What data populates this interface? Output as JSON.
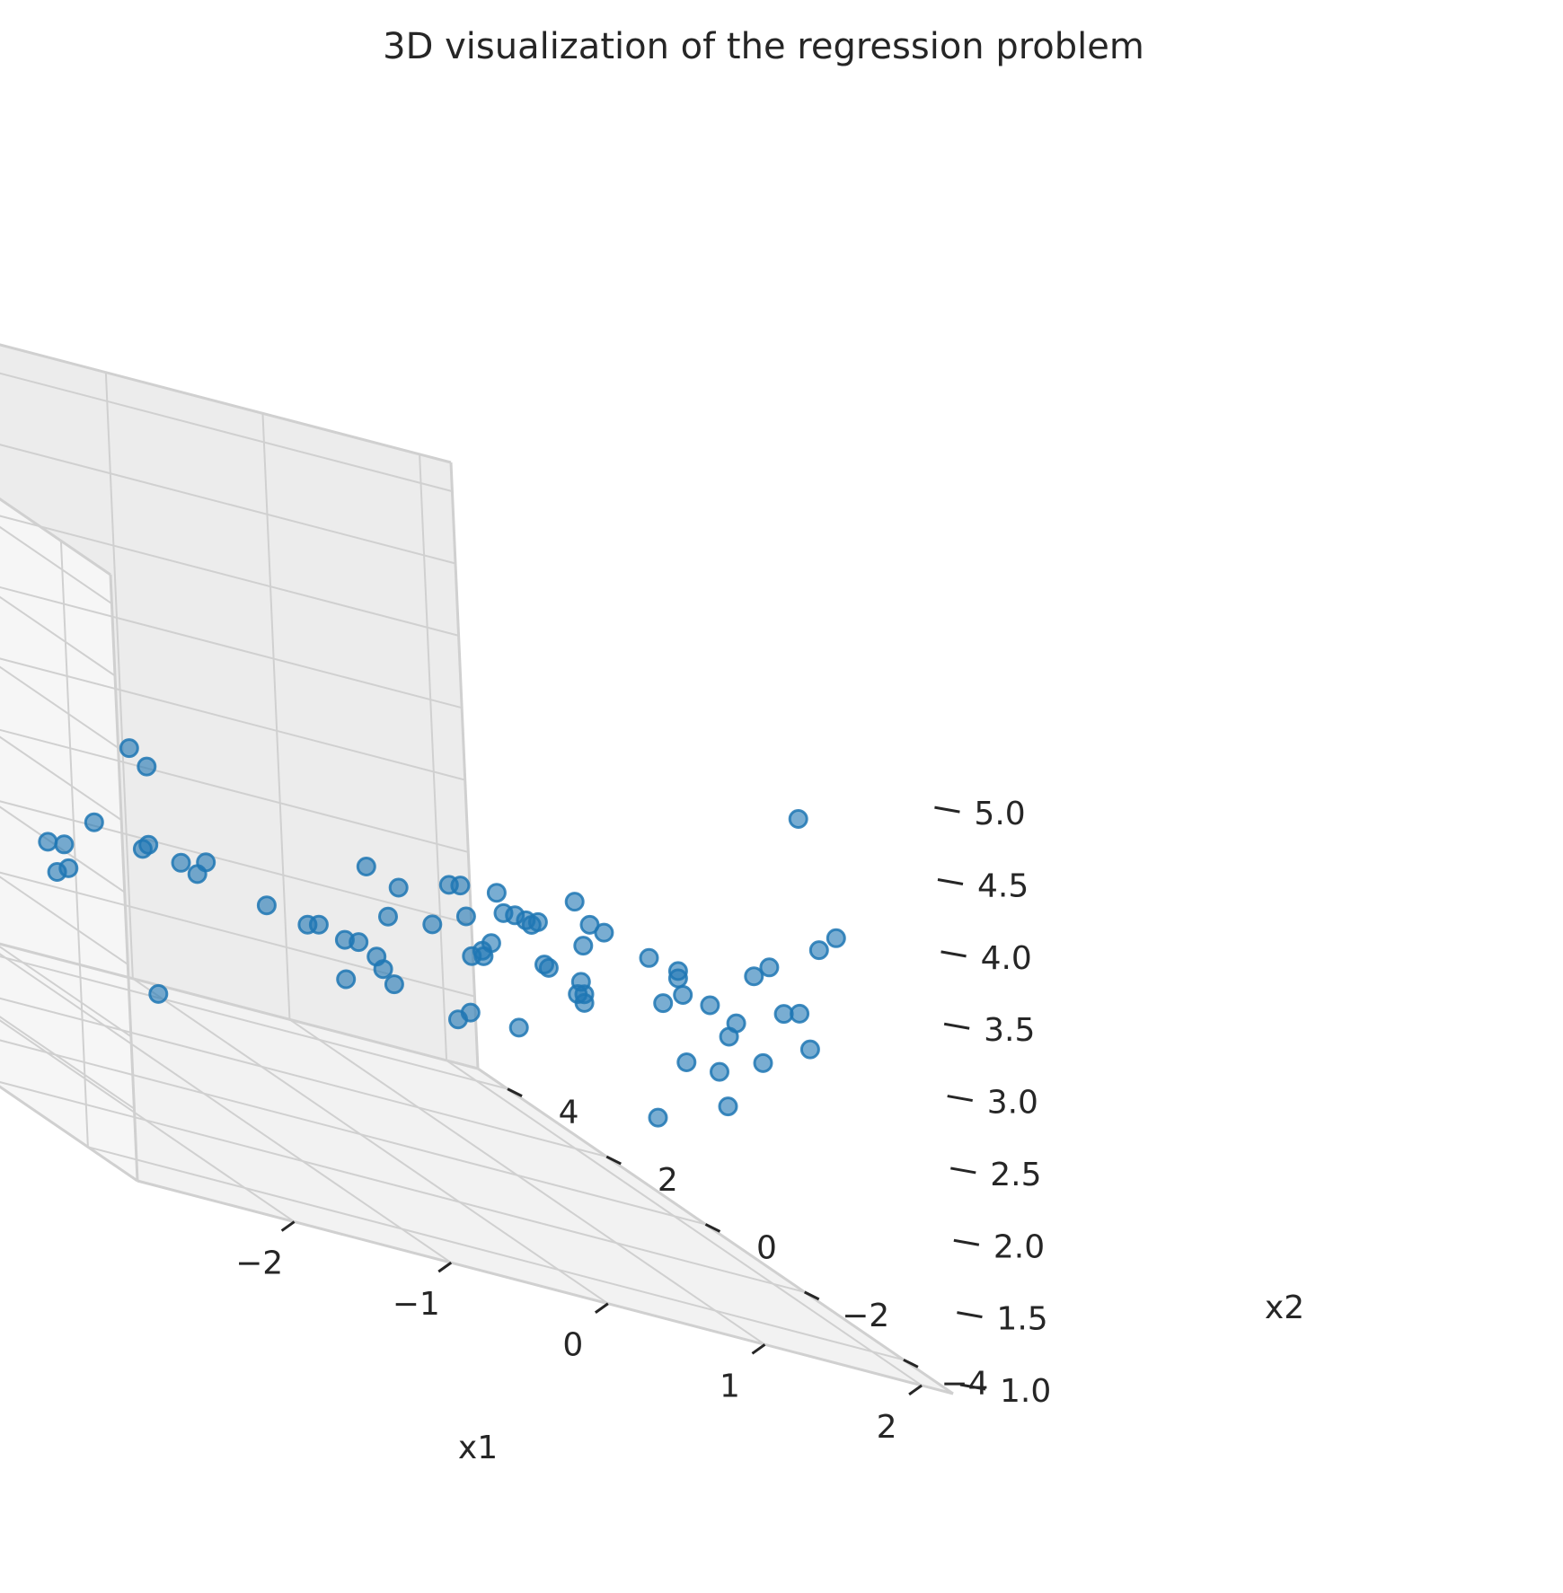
{
  "chart_data": {
    "type": "scatter",
    "projection": "3d",
    "title": "3D visualization of the regression problem",
    "xlabel": "x1",
    "ylabel": "x2",
    "zlabel": "",
    "xlim": [
      -3,
      2.2
    ],
    "ylim": [
      -5,
      4.6
    ],
    "zlim": [
      1.0,
      5.2
    ],
    "x_ticks": [
      "−2",
      "−1",
      "0",
      "1",
      "2"
    ],
    "y_ticks": [
      "−4",
      "−2",
      "0",
      "2",
      "4"
    ],
    "z_ticks": [
      "1.0",
      "1.5",
      "2.0",
      "2.5",
      "3.0",
      "3.5",
      "4.0",
      "4.5",
      "5.0"
    ],
    "x_tick_values": [
      -2,
      -1,
      0,
      1,
      2
    ],
    "y_tick_values": [
      -4,
      -2,
      0,
      2,
      4
    ],
    "z_tick_values": [
      1.0,
      1.5,
      2.0,
      2.5,
      3.0,
      3.5,
      4.0,
      4.5,
      5.0
    ],
    "grid": true,
    "color": "#1f77b4",
    "points": [
      {
        "x": -2.8,
        "y": 2.5,
        "z": 1.98
      },
      {
        "x": -0.18,
        "y": 3.5,
        "z": 1.1
      },
      {
        "x": -1.8,
        "y": 3.8,
        "z": 2.72
      },
      {
        "x": -1.72,
        "y": 3.4,
        "z": 2.62
      },
      {
        "x": -1.64,
        "y": 2.9,
        "z": 2.55
      },
      {
        "x": -1.4,
        "y": 4.0,
        "z": 2.5
      },
      {
        "x": -1.42,
        "y": 4.4,
        "z": 2.14
      },
      {
        "x": -0.9,
        "y": 3.0,
        "z": 2.05
      },
      {
        "x": -0.94,
        "y": 2.8,
        "z": 1.92
      },
      {
        "x": -0.88,
        "y": 3.4,
        "z": 1.98
      },
      {
        "x": -0.86,
        "y": 3.3,
        "z": 1.8
      },
      {
        "x": -0.36,
        "y": 3.3,
        "z": 2.8
      },
      {
        "x": -0.5,
        "y": 2.5,
        "z": 2.82
      },
      {
        "x": -0.7,
        "y": 3.0,
        "z": 2.26
      },
      {
        "x": -0.3,
        "y": 2.0,
        "z": 2.33
      },
      {
        "x": -0.48,
        "y": 2.6,
        "z": 2.26
      },
      {
        "x": -0.58,
        "y": 2.4,
        "z": 2.25
      },
      {
        "x": -0.08,
        "y": 2.9,
        "z": 2.1
      },
      {
        "x": -0.12,
        "y": 3.1,
        "z": 2.12
      },
      {
        "x": 0.08,
        "y": 2.0,
        "z": 2.14
      },
      {
        "x": 0.4,
        "y": 2.2,
        "z": 2.05
      },
      {
        "x": 0.41,
        "y": 2.0,
        "z": 2.1
      },
      {
        "x": 0.45,
        "y": 1.6,
        "z": 2.1
      },
      {
        "x": 0.6,
        "y": 1.8,
        "z": 2.08
      },
      {
        "x": 0.65,
        "y": 1.6,
        "z": 2.04
      },
      {
        "x": 0.88,
        "y": 3.0,
        "z": 1.62
      },
      {
        "x": 0.72,
        "y": 1.7,
        "z": 1.95
      },
      {
        "x": 0.88,
        "y": 2.0,
        "z": 1.82
      },
      {
        "x": 0.55,
        "y": 1.0,
        "z": 2.43
      },
      {
        "x": 1.22,
        "y": 1.8,
        "z": 1.72
      },
      {
        "x": 1.24,
        "y": 1.6,
        "z": 1.82
      },
      {
        "x": 1.3,
        "y": 0.8,
        "z": 1.92
      },
      {
        "x": 1.8,
        "y": -0.4,
        "z": 1.72
      },
      {
        "x": 0.5,
        "y": -3.2,
        "z": 3.2
      },
      {
        "x": 0.7,
        "y": -3.0,
        "z": 3.3
      },
      {
        "x": 0.46,
        "y": -1.0,
        "z": 2.6
      },
      {
        "x": 0.3,
        "y": 0.6,
        "z": 2.8
      },
      {
        "x": 0.44,
        "y": 0.4,
        "z": 2.74
      },
      {
        "x": 0.58,
        "y": -0.2,
        "z": 2.94
      },
      {
        "x": 0.56,
        "y": -0.5,
        "z": 3.0
      },
      {
        "x": 0.62,
        "y": -0.4,
        "z": 2.78
      },
      {
        "x": 0.7,
        "y": -0.8,
        "z": 3.06
      },
      {
        "x": 0.78,
        "y": -0.9,
        "z": 2.95
      },
      {
        "x": 0.8,
        "y": -0.6,
        "z": 2.9
      },
      {
        "x": 0.88,
        "y": -0.8,
        "z": 2.92
      },
      {
        "x": 1.02,
        "y": -0.6,
        "z": 2.9
      },
      {
        "x": 1.04,
        "y": -0.4,
        "z": 2.84
      },
      {
        "x": 0.96,
        "y": 0.2,
        "z": 2.55
      },
      {
        "x": 1.0,
        "y": 0.5,
        "z": 2.4
      },
      {
        "x": 1.08,
        "y": -0.5,
        "z": 2.6
      },
      {
        "x": 1.2,
        "y": -0.8,
        "z": 3.14
      },
      {
        "x": 1.26,
        "y": -0.9,
        "z": 3.02
      },
      {
        "x": 1.28,
        "y": -0.6,
        "z": 2.56
      },
      {
        "x": 1.36,
        "y": -0.4,
        "z": 2.45
      },
      {
        "x": 1.38,
        "y": -0.2,
        "z": 2.41
      },
      {
        "x": 1.42,
        "y": -0.2,
        "z": 2.36
      },
      {
        "x": 1.54,
        "y": -1.2,
        "z": 2.94
      },
      {
        "x": 1.6,
        "y": -1.6,
        "z": 2.96
      },
      {
        "x": 1.66,
        "y": -1.4,
        "z": 2.88
      },
      {
        "x": 1.68,
        "y": -1.0,
        "z": 2.62
      },
      {
        "x": 1.84,
        "y": -2.4,
        "z": 3.18
      },
      {
        "x": 1.88,
        "y": -2.6,
        "z": 3.3
      },
      {
        "x": 1.92,
        "y": -1.2,
        "z": 2.72
      },
      {
        "x": 1.96,
        "y": -1.6,
        "z": 2.7
      },
      {
        "x": 2.0,
        "y": -2.8,
        "z": 3.06
      },
      {
        "x": 2.02,
        "y": -3.2,
        "z": 3.6
      },
      {
        "x": 2.06,
        "y": -1.8,
        "z": 2.5
      },
      {
        "x": 2.1,
        "y": -0.9,
        "z": 2.0
      },
      {
        "x": 2.0,
        "y": -0.4,
        "z": 2.16
      },
      {
        "x": 2.12,
        "y": -2.6,
        "z": 2.8
      },
      {
        "x": 1.96,
        "y": -2.6,
        "z": 3.0
      },
      {
        "x": 1.9,
        "y": -1.4,
        "z": 2.3
      },
      {
        "x": 1.8,
        "y": -3.6,
        "z": 4.54
      },
      {
        "x": 1.7,
        "y": -4.6,
        "z": 3.92
      },
      {
        "x": 1.6,
        "y": -2.6,
        "z": 2.74
      },
      {
        "x": 1.5,
        "y": -2.0,
        "z": 2.86
      },
      {
        "x": 0.9,
        "y": 0.2,
        "z": 2.48
      },
      {
        "x": 0.74,
        "y": 0.7,
        "z": 2.5
      },
      {
        "x": 1.2,
        "y": -0.2,
        "z": 2.54
      }
    ]
  }
}
